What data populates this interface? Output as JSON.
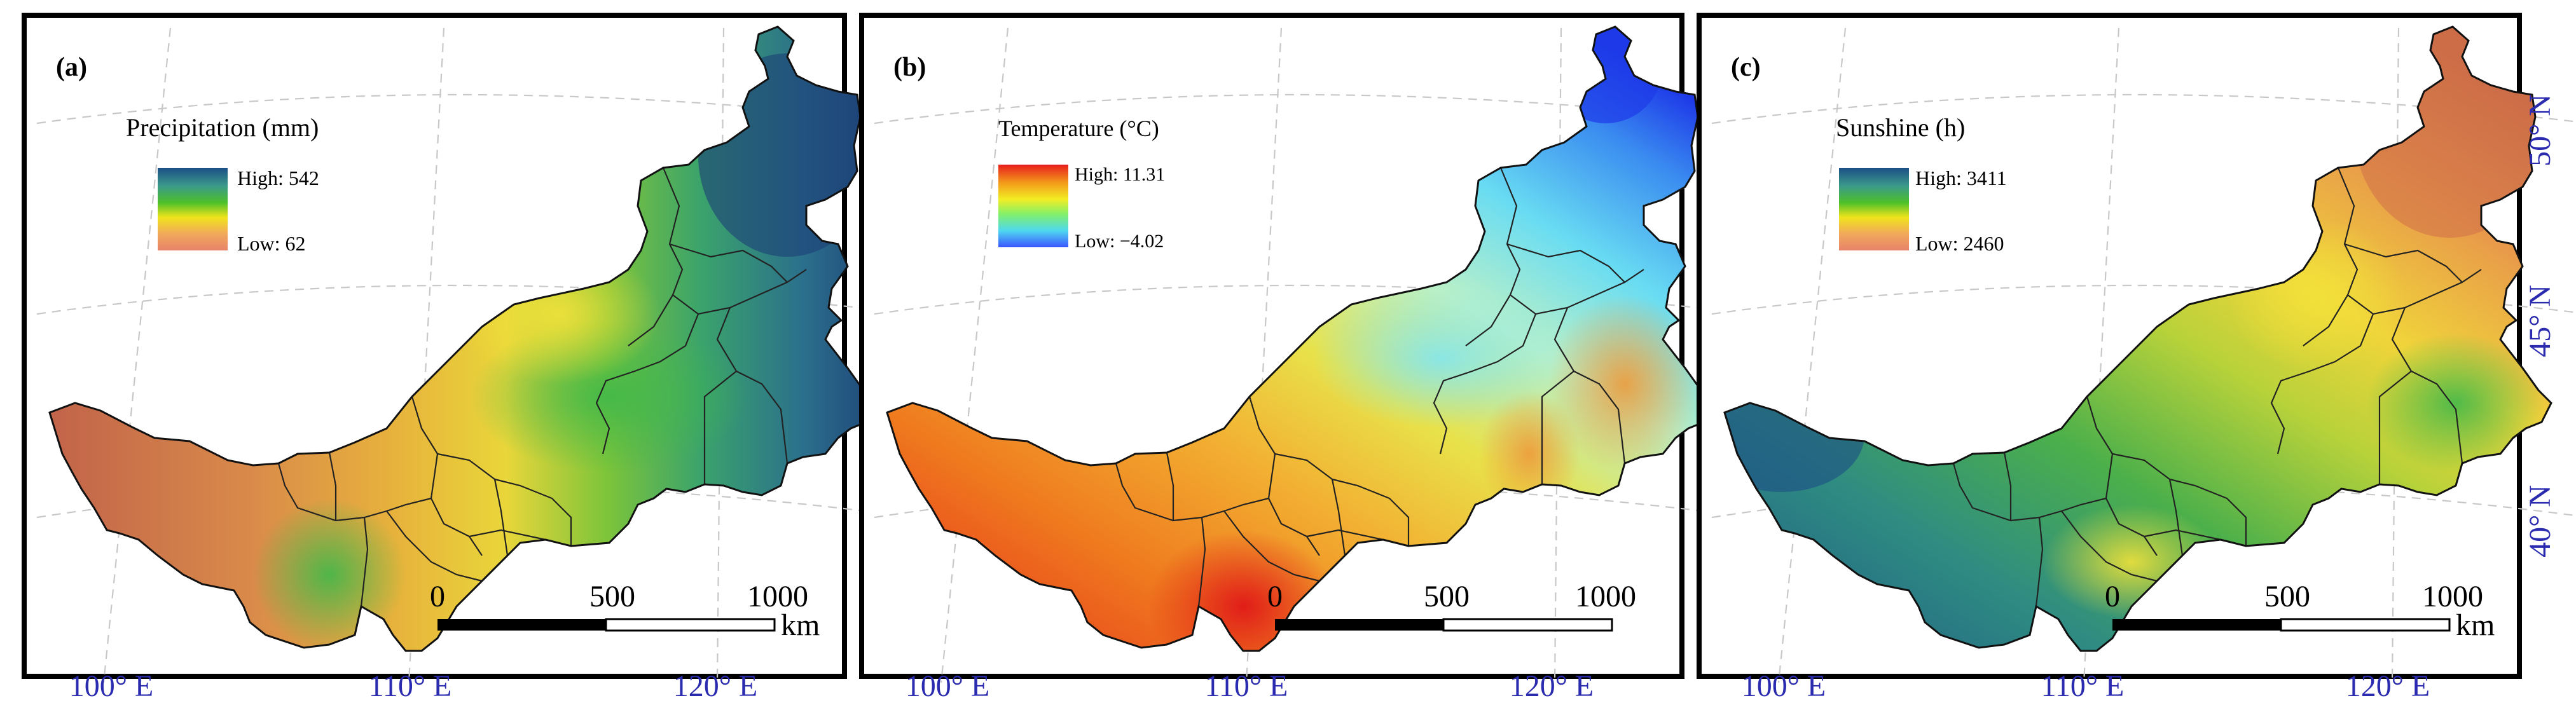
{
  "colors": {
    "axis_label": "#2b2bb0",
    "graticule": "#c8c8c8",
    "frame": "#000000"
  },
  "panels": [
    {
      "id": "a",
      "tag": "(a)",
      "title": "Precipitation (mm)",
      "legend_high": "High: 542",
      "legend_low": "Low:  62",
      "legend_colors": [
        "#1c4f86",
        "#3a9a8a",
        "#4cc02a",
        "#f0e41c",
        "#f1a85c",
        "#e8836a"
      ],
      "scale": {
        "ticks": [
          "0",
          "500",
          "1000"
        ],
        "unit": "km"
      }
    },
    {
      "id": "b",
      "tag": "(b)",
      "title": "Temperature (°C)",
      "legend_high": "High: 11.31",
      "legend_low": "Low: −4.02",
      "legend_colors": [
        "#e81d1d",
        "#f39a1a",
        "#f2ee24",
        "#82f06a",
        "#4fd8f0",
        "#3a55ff"
      ],
      "scale": {
        "ticks": [
          "0",
          "500",
          "1000"
        ],
        "unit": "km"
      }
    },
    {
      "id": "c",
      "tag": "(c)",
      "title": "Sunshine (h)",
      "legend_high": "High: 3411",
      "legend_low": "Low:  2460",
      "legend_colors": [
        "#1c4f86",
        "#3a9a8a",
        "#4cc02a",
        "#f0e41c",
        "#f1a85c",
        "#e8836a"
      ],
      "scale": {
        "ticks": [
          "0",
          "500",
          "1000"
        ],
        "unit": "km"
      }
    }
  ],
  "axes": {
    "longitude_labels": [
      "100° E",
      "110° E",
      "120° E"
    ],
    "latitude_labels": [
      "50° N",
      "45° N",
      "40° N"
    ]
  }
}
